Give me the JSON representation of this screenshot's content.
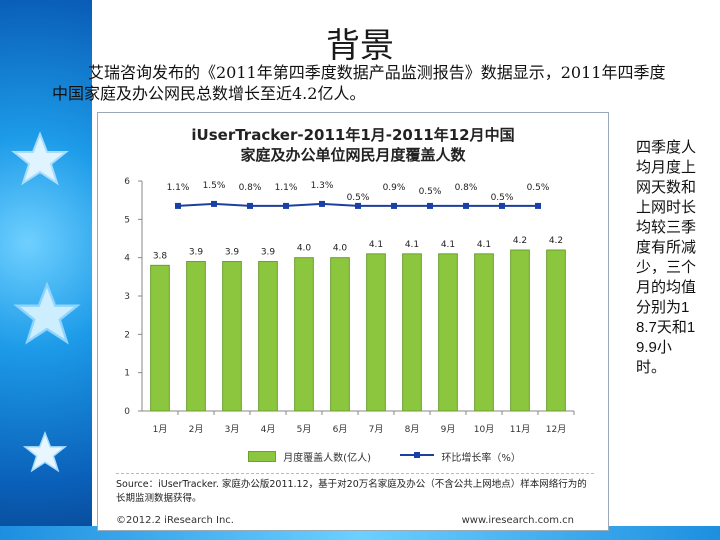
{
  "slide": {
    "title": "背景",
    "intro": "艾瑞咨询发布的《2011年第四季度数据产品监测报告》数据显示，2011年四季度中国家庭及办公网民总数增长至近4.2亿人。",
    "side_note": "四季度人均月度上网天数和上网时长均较三季度有所减少，三个月的均值分别为18.7天和19.9小时。"
  },
  "colors": {
    "bar": "#8cc63f",
    "bar_border": "#6aa22a",
    "line": "#1f3f9c",
    "marker": "#1a3fa8"
  },
  "chart_data": {
    "type": "bar",
    "title": "iUserTracker-2011年1月-2011年12月中国\n家庭及办公单位网民月度覆盖人数",
    "categories": [
      "1月",
      "2月",
      "3月",
      "4月",
      "5月",
      "6月",
      "7月",
      "8月",
      "9月",
      "10月",
      "11月",
      "12月"
    ],
    "series": [
      {
        "name": "月度覆盖人数(亿人)",
        "type": "bar",
        "values": [
          3.8,
          3.9,
          3.9,
          3.9,
          4.0,
          4.0,
          4.1,
          4.1,
          4.1,
          4.1,
          4.2,
          4.2
        ],
        "labels": [
          "3.8",
          "3.9",
          "3.9",
          "3.9",
          "4.0",
          "4.0",
          "4.1",
          "4.1",
          "4.1",
          "4.1",
          "4.2",
          "4.2"
        ]
      },
      {
        "name": "环比增长率（%）",
        "type": "line",
        "labels": [
          "1.1%",
          "1.5%",
          "0.8%",
          "1.1%",
          "1.3%",
          "0.5%",
          "0.9%",
          "0.5%",
          "0.8%",
          "0.5%",
          "0.5%"
        ]
      }
    ],
    "ylim": [
      0,
      6
    ],
    "yticks": [
      "0",
      "1",
      "2",
      "3",
      "4",
      "5",
      "6"
    ]
  },
  "source": "Source：iUserTracker. 家庭办公版2011.12，基于对20万名家庭及办公（不含公共上网地点）样本网络行为的长期监测数据获得。",
  "footer": {
    "copyright": "©2012.2 iResearch Inc.",
    "website": "www.iresearch.com.cn"
  }
}
